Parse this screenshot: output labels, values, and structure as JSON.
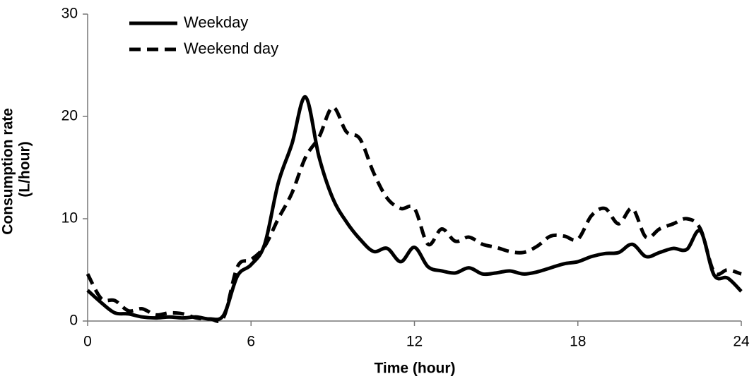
{
  "chart_data": {
    "type": "line",
    "xlabel": "Time (hour)",
    "ylabel": [
      "Consumption rate",
      "(L/hour)"
    ],
    "x": [
      0,
      0.5,
      1,
      1.5,
      2,
      2.5,
      3,
      3.5,
      4,
      4.5,
      5,
      5.5,
      6,
      6.5,
      7,
      7.5,
      8,
      8.5,
      9,
      9.5,
      10,
      10.5,
      11,
      11.5,
      12,
      12.5,
      13,
      13.5,
      14,
      14.5,
      15,
      15.5,
      16,
      16.5,
      17,
      17.5,
      18,
      18.5,
      19,
      19.5,
      20,
      20.5,
      21,
      21.5,
      22,
      22.5,
      23,
      23.5,
      24
    ],
    "series": [
      {
        "name": "Weekday",
        "color": "#000000",
        "dashed": false,
        "values": [
          3.0,
          1.8,
          0.8,
          0.7,
          0.4,
          0.3,
          0.4,
          0.3,
          0.4,
          0.2,
          0.6,
          4.4,
          5.5,
          7.5,
          13.5,
          17.3,
          21.9,
          16.0,
          12.0,
          9.7,
          8.0,
          6.8,
          7.1,
          5.8,
          7.2,
          5.3,
          4.9,
          4.7,
          5.2,
          4.6,
          4.7,
          4.9,
          4.6,
          4.8,
          5.2,
          5.6,
          5.8,
          6.3,
          6.6,
          6.7,
          7.5,
          6.3,
          6.7,
          7.1,
          7.0,
          8.8,
          4.5,
          4.2,
          2.9
        ]
      },
      {
        "name": "Weekend day",
        "color": "#000000",
        "dashed": true,
        "values": [
          4.6,
          2.2,
          2.0,
          1.0,
          1.2,
          0.6,
          0.8,
          0.7,
          0.3,
          0.2,
          0.4,
          5.3,
          6.0,
          7.3,
          10.0,
          12.5,
          16.0,
          18.0,
          20.9,
          18.5,
          17.8,
          14.5,
          12.0,
          11.0,
          11.0,
          7.5,
          9.0,
          7.8,
          8.2,
          7.5,
          7.2,
          6.8,
          6.7,
          7.3,
          8.3,
          8.3,
          8.0,
          10.3,
          11.0,
          9.5,
          11.0,
          8.2,
          9.0,
          9.5,
          10.0,
          9.0,
          4.8,
          5.0,
          4.6
        ]
      }
    ],
    "xlim": [
      0,
      24
    ],
    "xticks": [
      0,
      6,
      12,
      18,
      24
    ],
    "ylim": [
      0,
      30
    ],
    "yticks": [
      0,
      10,
      20,
      30
    ],
    "grid": false,
    "legend": "top-left"
  }
}
